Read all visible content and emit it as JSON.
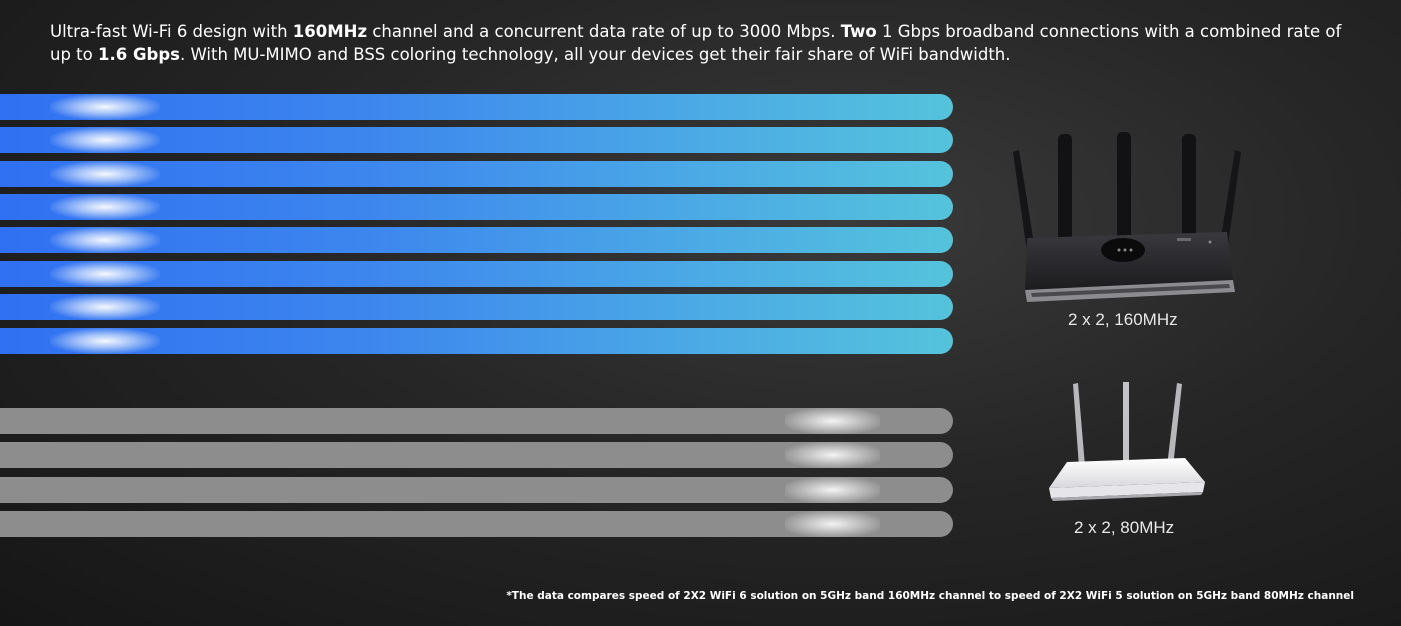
{
  "intro": {
    "p1": "Ultra-fast Wi-Fi 6 design with ",
    "b1": "160MHz",
    "p2": " channel and a concurrent data rate of up to 3000 Mbps. ",
    "b2": "Two",
    "p3": " 1 Gbps broadband connections with a combined rate of up to ",
    "b3": "1.6 Gbps",
    "p4": ". With MU-MIMO and BSS coloring technology, all your devices get their fair share of WiFi bandwidth."
  },
  "devices": {
    "wifi6": {
      "label": "2 x 2, 160MHz",
      "streams": 8,
      "color": "#3d86ee"
    },
    "wifi5": {
      "label": "2 x 2, 80MHz",
      "streams": 4,
      "color": "#8d8d8d"
    }
  },
  "footnote": "*The data compares speed of 2X2 WiFi 6 solution on 5GHz band 160MHz channel to speed of 2X2 WiFi 5 solution on 5GHz band 80MHz channel",
  "colors": {
    "background": "#262626",
    "fast_start": "#2f6ff2",
    "fast_end": "#55c3dc",
    "slow": "#8d8d8d"
  }
}
